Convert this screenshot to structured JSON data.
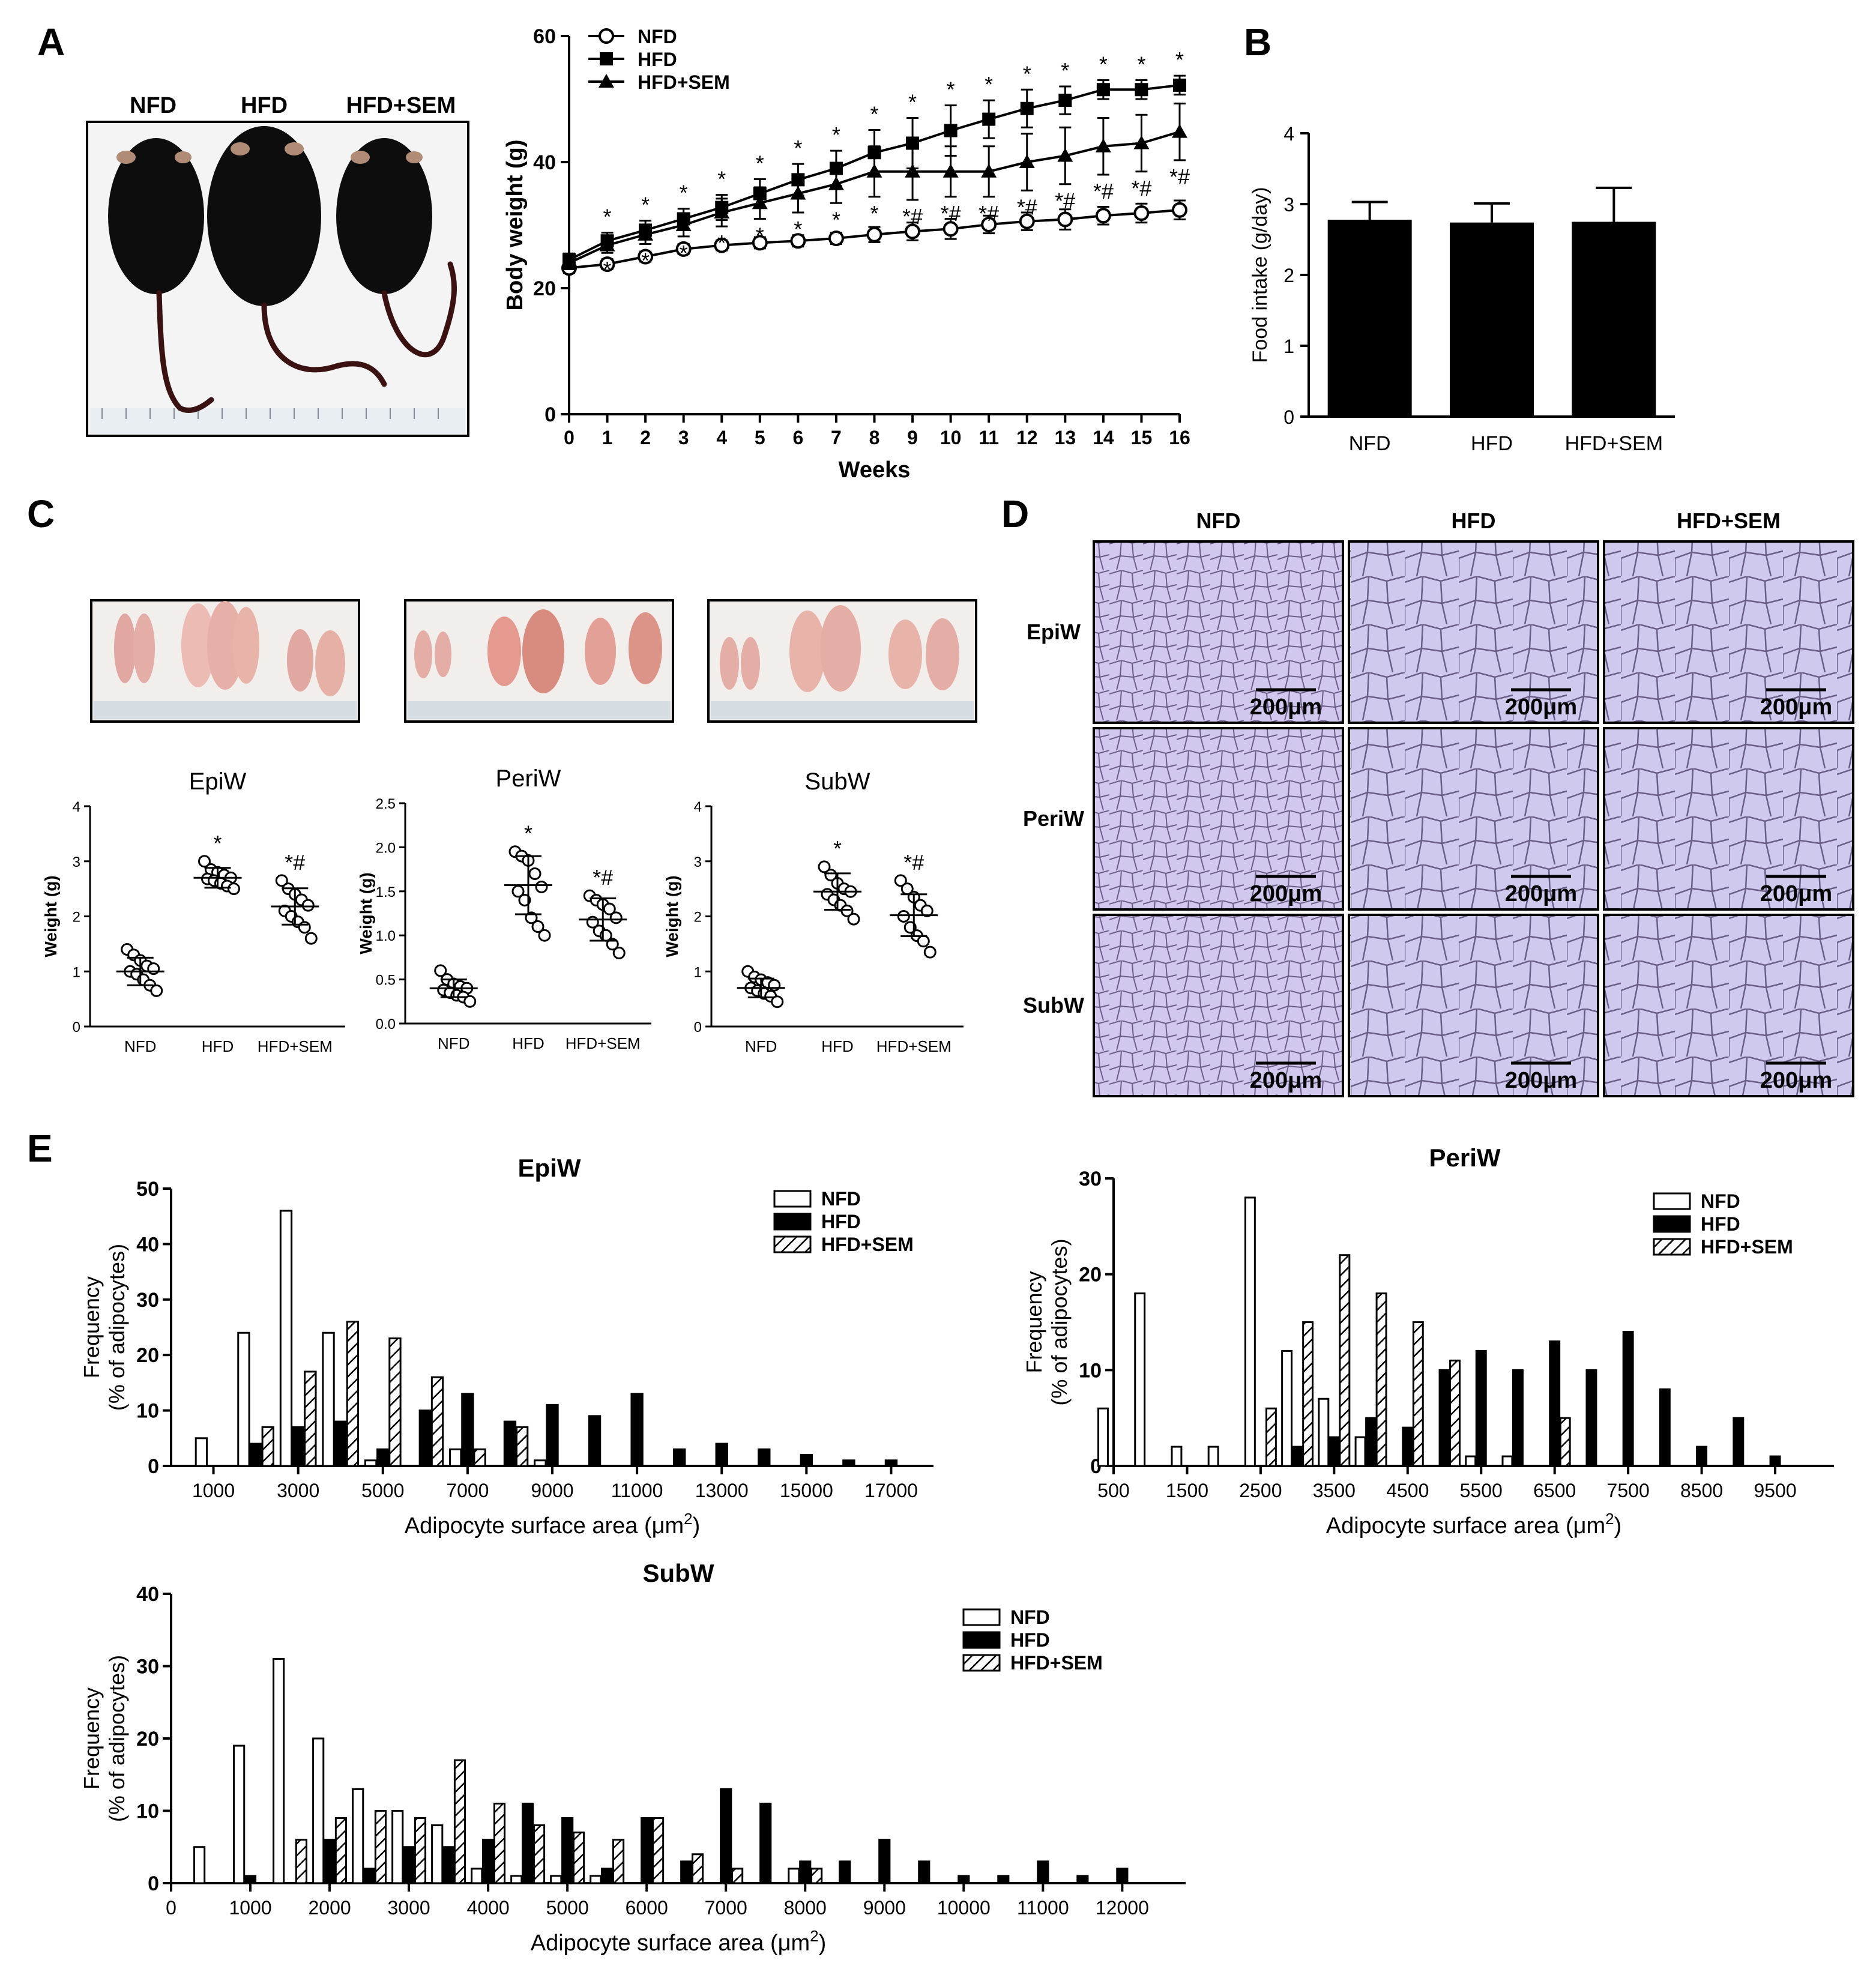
{
  "panel_letters": {
    "a": "A",
    "b": "B",
    "c": "C",
    "d": "D",
    "e": "E"
  },
  "mouse_photo": {
    "labels": [
      "NFD",
      "HFD",
      "HFD+SEM"
    ]
  },
  "fat_photos": {
    "count": 3
  },
  "histology": {
    "columns": [
      "NFD",
      "HFD",
      "HFD+SEM"
    ],
    "rows": [
      "EpiW",
      "PeriW",
      "SubW"
    ],
    "scale_bar": "200μm",
    "tissue_color": "#c9c3ea",
    "membrane_color": "#5a4f70"
  },
  "colors": {
    "black": "#000000",
    "white": "#ffffff",
    "ink": "#111111"
  },
  "chart_data": [
    {
      "id": "bodyweight",
      "type": "line",
      "title": "",
      "xlabel": "Weeks",
      "ylabel": "Body weight (g)",
      "x": [
        0,
        1,
        2,
        3,
        4,
        5,
        6,
        7,
        8,
        9,
        10,
        11,
        12,
        13,
        14,
        15,
        16
      ],
      "xlim": [
        0,
        16
      ],
      "ylim": [
        0,
        60
      ],
      "yticks": [
        0,
        20,
        40,
        60
      ],
      "legend": [
        "NFD",
        "HFD",
        "HFD+SEM"
      ],
      "series": [
        {
          "name": "NFD",
          "marker": "circle-open",
          "values": [
            23.2,
            23.8,
            25,
            26.2,
            26.8,
            27.2,
            27.5,
            27.9,
            28.5,
            29,
            29.4,
            30.1,
            30.6,
            30.9,
            31.5,
            31.9,
            32.4
          ],
          "errors": [
            0.8,
            0.8,
            0.8,
            0.8,
            0.8,
            0.9,
            0.9,
            0.9,
            1.2,
            1.4,
            1.6,
            1.4,
            1.4,
            1.6,
            1.4,
            1.5,
            1.5
          ],
          "annotations": []
        },
        {
          "name": "HFD",
          "marker": "square-filled",
          "values": [
            24.5,
            27.5,
            29.2,
            31,
            32.8,
            35,
            37.2,
            39,
            41.5,
            43,
            45,
            46.8,
            48.5,
            49.8,
            51.5,
            51.5,
            52.2
          ],
          "errors": [
            1,
            1.3,
            1.5,
            1.6,
            2,
            2.3,
            2.5,
            2.8,
            3.6,
            4,
            4,
            3,
            3,
            2.2,
            1.5,
            1.5,
            1.5
          ],
          "annotations": [
            "",
            "*",
            "*",
            "*",
            "*",
            "*",
            "*",
            "*",
            "*",
            "*",
            "*",
            "*",
            "*",
            "*",
            "*",
            "*",
            "*"
          ]
        },
        {
          "name": "HFD+SEM",
          "marker": "triangle-filled",
          "values": [
            24,
            26.8,
            28.5,
            30,
            32,
            33.5,
            35,
            36.5,
            38.5,
            38.5,
            38.5,
            38.5,
            40,
            41,
            42.5,
            43,
            44.8
          ],
          "errors": [
            1,
            1.2,
            1.5,
            1.8,
            2.2,
            2.5,
            3,
            3,
            4,
            4.5,
            4,
            4,
            4.5,
            4.5,
            4.5,
            4.5,
            4.5
          ],
          "annotations": [
            "",
            "*",
            "*",
            "*",
            "*",
            "*",
            "*",
            "*",
            "*",
            "*#",
            "*#",
            "*#",
            "*#",
            "*#",
            "*#",
            "*#",
            "*#"
          ]
        }
      ]
    },
    {
      "id": "foodintake",
      "type": "bar",
      "title": "",
      "xlabel": "",
      "ylabel": "Food intake (g/day)",
      "categories": [
        "NFD",
        "HFD",
        "HFD+SEM"
      ],
      "values": [
        2.78,
        2.74,
        2.75
      ],
      "errors": [
        0.25,
        0.27,
        0.48
      ],
      "ylim": [
        0,
        4
      ],
      "yticks": [
        0,
        1,
        2,
        3,
        4
      ]
    },
    {
      "id": "epiw_weight",
      "type": "scatter",
      "title": "EpiW",
      "ylabel": "Weight (g)",
      "categories": [
        "NFD",
        "HFD",
        "HFD+SEM"
      ],
      "ylim": [
        0,
        4
      ],
      "ytick_labels": [
        "0",
        "1",
        "2",
        "3",
        "4"
      ],
      "means": [
        1,
        2.7,
        2.18
      ],
      "sd": [
        0.25,
        0.18,
        0.33
      ],
      "points": [
        [
          1.4,
          1.3,
          1.2,
          1.1,
          1.05,
          1.0,
          0.95,
          0.85,
          0.75,
          0.65
        ],
        [
          3.0,
          2.85,
          2.8,
          2.75,
          2.7,
          2.68,
          2.65,
          2.6,
          2.55,
          2.5
        ],
        [
          2.65,
          2.5,
          2.4,
          2.3,
          2.2,
          2.1,
          2.0,
          1.9,
          1.8,
          1.6
        ]
      ],
      "annotations": [
        "",
        "*",
        "*#"
      ]
    },
    {
      "id": "periw_weight",
      "type": "scatter",
      "title": "PeriW",
      "ylabel": "Weight (g)",
      "categories": [
        "NFD",
        "HFD",
        "HFD+SEM"
      ],
      "ylim": [
        0,
        2.5
      ],
      "ytick_labels": [
        "0.0",
        "0.5",
        "1.0",
        "1.5",
        "2.0",
        "2.5"
      ],
      "means": [
        0.4,
        1.57,
        1.18
      ],
      "sd": [
        0.1,
        0.33,
        0.24
      ],
      "points": [
        [
          0.6,
          0.5,
          0.45,
          0.42,
          0.4,
          0.38,
          0.35,
          0.32,
          0.3,
          0.25
        ],
        [
          1.95,
          1.9,
          1.85,
          1.7,
          1.55,
          1.5,
          1.4,
          1.2,
          1.1,
          1.0
        ],
        [
          1.45,
          1.4,
          1.35,
          1.3,
          1.2,
          1.15,
          1.05,
          1.0,
          0.9,
          0.8
        ]
      ],
      "annotations": [
        "",
        "*",
        "*#"
      ]
    },
    {
      "id": "subw_weight",
      "type": "scatter",
      "title": "SubW",
      "ylabel": "Weight (g)",
      "categories": [
        "NFD",
        "HFD",
        "HFD+SEM"
      ],
      "ylim": [
        0,
        4
      ],
      "ytick_labels": [
        "0",
        "1",
        "2",
        "3",
        "4"
      ],
      "means": [
        0.7,
        2.45,
        2.02
      ],
      "sd": [
        0.17,
        0.33,
        0.38
      ],
      "points": [
        [
          1.0,
          0.9,
          0.85,
          0.8,
          0.75,
          0.7,
          0.65,
          0.6,
          0.55,
          0.45
        ],
        [
          2.9,
          2.75,
          2.6,
          2.5,
          2.45,
          2.4,
          2.3,
          2.2,
          2.1,
          1.95
        ],
        [
          2.65,
          2.5,
          2.35,
          2.2,
          2.1,
          2.0,
          1.8,
          1.65,
          1.55,
          1.35
        ]
      ],
      "annotations": [
        "",
        "*",
        "*#"
      ]
    },
    {
      "id": "hist_epiw",
      "type": "bar",
      "title": "EpiW",
      "xlabel": "Adipocyte surface area (μm",
      "xlabel_sup": "2",
      "xlabel_tail": ")",
      "ylabel_lines": [
        "Frequency",
        "(% of adipocytes)"
      ],
      "xlim": [
        0,
        18000
      ],
      "ylim": [
        0,
        50
      ],
      "yticks": [
        0,
        10,
        20,
        30,
        40,
        50
      ],
      "xticks": [
        1000,
        3000,
        5000,
        7000,
        9000,
        11000,
        13000,
        15000,
        17000
      ],
      "bin_width": 1000,
      "legend": [
        "NFD",
        "HFD",
        "HFD+SEM"
      ],
      "series": [
        {
          "name": "NFD",
          "x": [
            1000,
            2000,
            3000,
            4000,
            5000,
            7000,
            9000
          ],
          "values": [
            5,
            24,
            46,
            24,
            1,
            3,
            1
          ]
        },
        {
          "name": "HFD",
          "x": [
            2000,
            3000,
            4000,
            5000,
            6000,
            7000,
            8000,
            9000,
            10000,
            11000,
            12000,
            13000,
            14000,
            15000,
            16000,
            17000
          ],
          "values": [
            4,
            7,
            8,
            3,
            10,
            13,
            8,
            11,
            9,
            13,
            3,
            4,
            3,
            2,
            1,
            1
          ]
        },
        {
          "name": "HFD+SEM",
          "x": [
            2000,
            3000,
            4000,
            5000,
            6000,
            7000,
            8000
          ],
          "values": [
            7,
            17,
            26,
            23,
            16,
            3,
            7
          ]
        }
      ]
    },
    {
      "id": "hist_periw",
      "type": "bar",
      "title": "PeriW",
      "xlabel": "Adipocyte surface area (μm",
      "xlabel_sup": "2",
      "xlabel_tail": ")",
      "ylabel_lines": [
        "Frequency",
        "(% of adipocytes)"
      ],
      "xlim": [
        500,
        10300
      ],
      "ylim": [
        0,
        30
      ],
      "yticks": [
        0,
        10,
        20,
        30
      ],
      "xticks": [
        500,
        1500,
        2500,
        3500,
        4500,
        5500,
        6500,
        7500,
        8500,
        9500
      ],
      "bin_width": 500,
      "legend": [
        "NFD",
        "HFD",
        "HFD+SEM"
      ],
      "series": [
        {
          "name": "NFD",
          "x": [
            500,
            1000,
            1500,
            2000,
            2500,
            3000,
            3500,
            4000,
            4500,
            5000,
            5500,
            6000,
            6500
          ],
          "values": [
            6,
            18,
            2,
            2,
            28,
            12,
            7,
            3,
            0,
            0,
            1,
            1,
            0
          ]
        },
        {
          "name": "HFD",
          "x": [
            3000,
            3500,
            4000,
            4500,
            5000,
            5500,
            6000,
            6500,
            7000,
            7500,
            8000,
            8500,
            9000,
            9500
          ],
          "values": [
            2,
            3,
            5,
            4,
            10,
            12,
            10,
            13,
            10,
            14,
            8,
            2,
            5,
            1
          ]
        },
        {
          "name": "HFD+SEM",
          "x": [
            2500,
            3000,
            3500,
            4000,
            4500,
            5000,
            6500
          ],
          "values": [
            6,
            15,
            22,
            18,
            15,
            11,
            5
          ]
        }
      ]
    },
    {
      "id": "hist_subw",
      "type": "bar",
      "title": "SubW",
      "xlabel": "Adipocyte surface area (μm",
      "xlabel_sup": "2",
      "xlabel_tail": ")",
      "ylabel_lines": [
        "Frequency",
        "(% of adipocytes)"
      ],
      "xlim": [
        0,
        12800
      ],
      "ylim": [
        0,
        40
      ],
      "yticks": [
        0,
        10,
        20,
        30,
        40
      ],
      "xticks": [
        0,
        1000,
        2000,
        3000,
        4000,
        5000,
        6000,
        7000,
        8000,
        9000,
        10000,
        11000,
        12000
      ],
      "bin_width": 500,
      "legend": [
        "NFD",
        "HFD",
        "HFD+SEM"
      ],
      "series": [
        {
          "name": "NFD",
          "x": [
            500,
            1000,
            1500,
            2000,
            2500,
            3000,
            3500,
            4000,
            4500,
            5000,
            5500,
            6000,
            6500,
            7000,
            7500,
            8000
          ],
          "values": [
            5,
            19,
            31,
            20,
            13,
            10,
            8,
            2,
            1,
            1,
            1,
            0,
            0,
            0,
            0,
            2
          ]
        },
        {
          "name": "HFD",
          "x": [
            1000,
            2000,
            2500,
            3000,
            3500,
            4000,
            4500,
            5000,
            5500,
            6000,
            6500,
            7000,
            7500,
            8000,
            8500,
            9000,
            9500,
            10000,
            10500,
            11000,
            11500,
            12000
          ],
          "values": [
            1,
            6,
            2,
            5,
            5,
            6,
            11,
            9,
            2,
            9,
            3,
            13,
            11,
            3,
            3,
            6,
            3,
            1,
            1,
            3,
            1,
            2
          ]
        },
        {
          "name": "HFD+SEM",
          "x": [
            1500,
            2000,
            2500,
            3000,
            3500,
            4000,
            4500,
            5000,
            5500,
            6000,
            6500,
            7000,
            7500,
            8000
          ],
          "values": [
            6,
            9,
            10,
            9,
            17,
            11,
            8,
            7,
            6,
            9,
            4,
            2,
            0,
            2
          ]
        }
      ]
    }
  ]
}
